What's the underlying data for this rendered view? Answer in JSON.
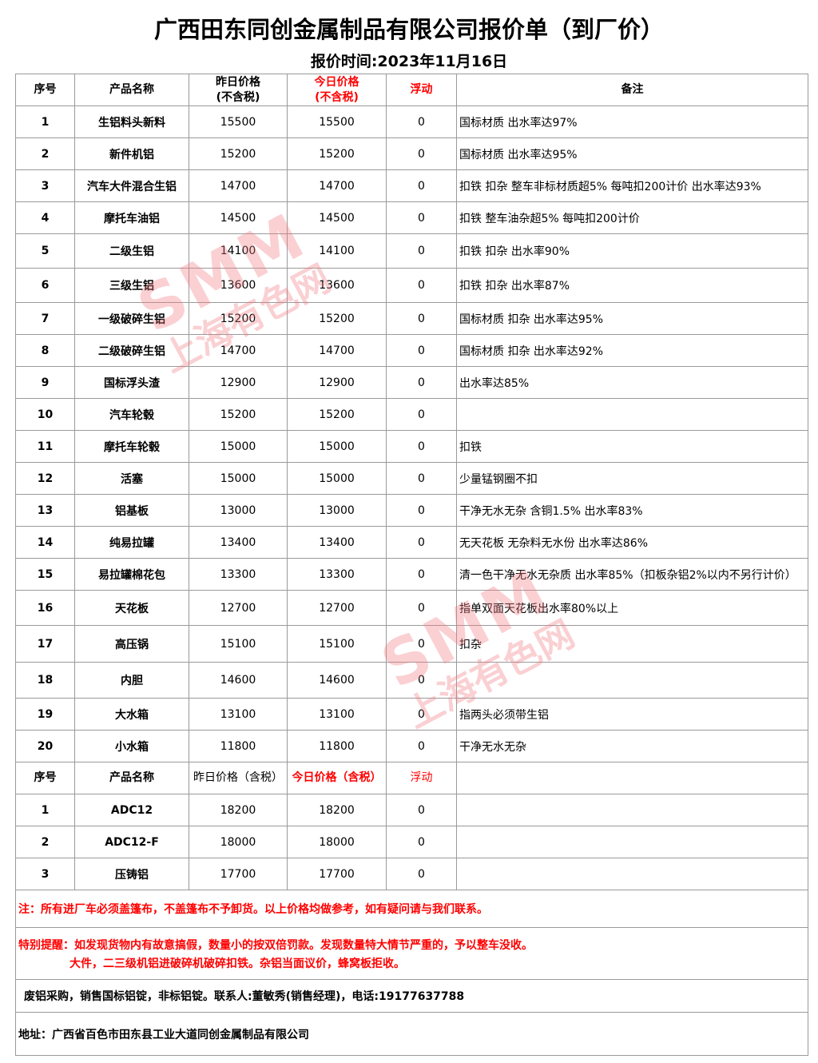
{
  "title": "广西田东同创金属制品有限公司报价单（到厂价）",
  "subtitle": "报价时间:2023年11月16日",
  "header1": {
    "no": "序号",
    "name": "产品名称",
    "yesterday_l1": "昨日价格",
    "yesterday_l2": "(不含税)",
    "today_l1": "今日价格",
    "today_l2": "(不含税)",
    "change": "浮动",
    "remark": "备注"
  },
  "rows1": [
    {
      "no": "1",
      "name": "生铝料头新料",
      "yesterday": "15500",
      "today": "15500",
      "change": "0",
      "remark": "国标材质 出水率达97%"
    },
    {
      "no": "2",
      "name": "新件机铝",
      "yesterday": "15200",
      "today": "15200",
      "change": "0",
      "remark": "国标材质 出水率达95%"
    },
    {
      "no": "3",
      "name": "汽车大件混合生铝",
      "yesterday": "14700",
      "today": "14700",
      "change": "0",
      "remark": "扣铁 扣杂 整车非标材质超5% 每吨扣200计价 出水率达93%"
    },
    {
      "no": "4",
      "name": "摩托车油铝",
      "yesterday": "14500",
      "today": "14500",
      "change": "0",
      "remark": "扣铁 整车油杂超5% 每吨扣200计价"
    },
    {
      "no": "5",
      "name": "二级生铝",
      "yesterday": "14100",
      "today": "14100",
      "change": "0",
      "remark": "扣铁 扣杂 出水率90%"
    },
    {
      "no": "6",
      "name": "三级生铝",
      "yesterday": "13600",
      "today": "13600",
      "change": "0",
      "remark": "扣铁 扣杂 出水率87%"
    },
    {
      "no": "7",
      "name": "一级破碎生铝",
      "yesterday": "15200",
      "today": "15200",
      "change": "0",
      "remark": "国标材质 扣杂 出水率达95%"
    },
    {
      "no": "8",
      "name": "二级破碎生铝",
      "yesterday": "14700",
      "today": "14700",
      "change": "0",
      "remark": "国标材质 扣杂 出水率达92%"
    },
    {
      "no": "9",
      "name": "国标浮头渣",
      "yesterday": "12900",
      "today": "12900",
      "change": "0",
      "remark": "出水率达85%"
    },
    {
      "no": "10",
      "name": "汽车轮毂",
      "yesterday": "15200",
      "today": "15200",
      "change": "0",
      "remark": ""
    },
    {
      "no": "11",
      "name": "摩托车轮毂",
      "yesterday": "15000",
      "today": "15000",
      "change": "0",
      "remark": "扣铁"
    },
    {
      "no": "12",
      "name": "活塞",
      "yesterday": "15000",
      "today": "15000",
      "change": "0",
      "remark": "少量锰钢圈不扣"
    },
    {
      "no": "13",
      "name": "铝基板",
      "yesterday": "13000",
      "today": "13000",
      "change": "0",
      "remark": "干净无水无杂 含铜1.5% 出水率83%"
    },
    {
      "no": "14",
      "name": "纯易拉罐",
      "yesterday": "13400",
      "today": "13400",
      "change": "0",
      "remark": "无天花板 无杂料无水份 出水率达86%"
    },
    {
      "no": "15",
      "name": "易拉罐棉花包",
      "yesterday": "13300",
      "today": "13300",
      "change": "0",
      "remark": "清一色干净无水无杂质 出水率85%（扣板杂铝2%以内不另行计价）"
    },
    {
      "no": "16",
      "name": "天花板",
      "yesterday": "12700",
      "today": "12700",
      "change": "0",
      "remark": "指单双面天花板出水率80%以上"
    },
    {
      "no": "17",
      "name": "高压锅",
      "yesterday": "15100",
      "today": "15100",
      "change": "0",
      "remark": "扣杂"
    },
    {
      "no": "18",
      "name": "内胆",
      "yesterday": "14600",
      "today": "14600",
      "change": "0",
      "remark": ""
    },
    {
      "no": "19",
      "name": "大水箱",
      "yesterday": "13100",
      "today": "13100",
      "change": "0",
      "remark": "指两头必须带生铝"
    },
    {
      "no": "20",
      "name": "小水箱",
      "yesterday": "11800",
      "today": "11800",
      "change": "0",
      "remark": "干净无水无杂"
    }
  ],
  "header2": {
    "no": "序号",
    "name": "产品名称",
    "yesterday": "昨日价格（含税）",
    "today": "今日价格（含税）",
    "change": "浮动"
  },
  "rows2": [
    {
      "no": "1",
      "name": "ADC12",
      "yesterday": "18200",
      "today": "18200",
      "change": "0"
    },
    {
      "no": "2",
      "name": "ADC12-F",
      "yesterday": "18000",
      "today": "18000",
      "change": "0"
    },
    {
      "no": "3",
      "name": "压铸铝",
      "yesterday": "17700",
      "today": "17700",
      "change": "0"
    }
  ],
  "notes": {
    "note1": "注：所有进厂车必须盖篷布，不盖篷布不予卸货。以上价格均做参考，如有疑问请与我们联系。",
    "reminder_l1": "特别提醒：如发现货物内有故意搞假，数量小的按双倍罚款。发现数量特大情节严重的，予以整车没收。",
    "reminder_l2": "大件，二三级机铝进破碎机破碎扣铁。杂铝当面议价，蜂窝板拒收。",
    "contact": "废铝采购，销售国标铝锭，非标铝锭。联系人:董敏秀(销售经理)，电话:19177637788",
    "address": "地址：广西省百色市田东县工业大道同创金属制品有限公司"
  },
  "watermark": {
    "brand": "SMM",
    "name": "上海有色网"
  },
  "colors": {
    "accent_red": "#ff0000",
    "watermark": "#f07882"
  }
}
